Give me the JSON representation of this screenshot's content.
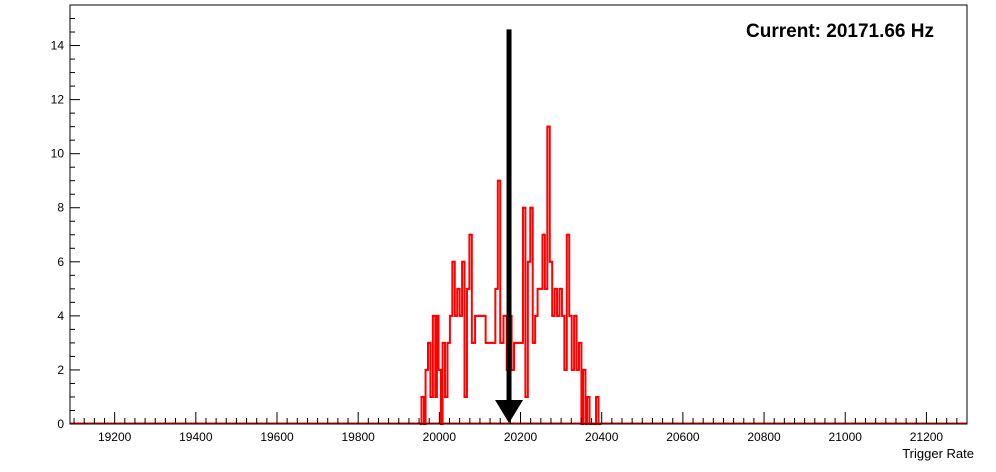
{
  "chart_data": {
    "type": "histogram",
    "title": "",
    "xlabel": "Trigger Rate",
    "ylabel": "",
    "xlim": [
      19090,
      21300
    ],
    "ylim": [
      0,
      15.5
    ],
    "x_ticks": [
      19200,
      19400,
      19600,
      19800,
      20000,
      20200,
      20400,
      20600,
      20800,
      21000,
      21200
    ],
    "y_ticks": [
      0,
      2,
      4,
      6,
      8,
      10,
      12,
      14
    ],
    "grid": false,
    "legend": "none",
    "series_color": "#ff0000",
    "annotation": "Current: 20171.66 Hz",
    "marker_color": "#000000",
    "current_value": 20171.66,
    "bins": [
      {
        "x": 19952,
        "y": 0
      },
      {
        "x": 19956,
        "y": 1
      },
      {
        "x": 19962,
        "y": 0
      },
      {
        "x": 19966,
        "y": 2
      },
      {
        "x": 19972,
        "y": 3
      },
      {
        "x": 19978,
        "y": 1
      },
      {
        "x": 19984,
        "y": 4
      },
      {
        "x": 19990,
        "y": 1
      },
      {
        "x": 19994,
        "y": 4
      },
      {
        "x": 19998,
        "y": 2
      },
      {
        "x": 20004,
        "y": 0
      },
      {
        "x": 20008,
        "y": 3
      },
      {
        "x": 20014,
        "y": 1
      },
      {
        "x": 20020,
        "y": 3
      },
      {
        "x": 20026,
        "y": 4
      },
      {
        "x": 20032,
        "y": 6
      },
      {
        "x": 20038,
        "y": 4
      },
      {
        "x": 20044,
        "y": 5
      },
      {
        "x": 20050,
        "y": 4
      },
      {
        "x": 20056,
        "y": 6
      },
      {
        "x": 20062,
        "y": 1
      },
      {
        "x": 20068,
        "y": 5
      },
      {
        "x": 20074,
        "y": 7
      },
      {
        "x": 20080,
        "y": 3
      },
      {
        "x": 20088,
        "y": 4
      },
      {
        "x": 20098,
        "y": 4
      },
      {
        "x": 20106,
        "y": 4
      },
      {
        "x": 20114,
        "y": 3
      },
      {
        "x": 20122,
        "y": 3
      },
      {
        "x": 20130,
        "y": 3
      },
      {
        "x": 20138,
        "y": 5
      },
      {
        "x": 20144,
        "y": 9
      },
      {
        "x": 20150,
        "y": 3
      },
      {
        "x": 20158,
        "y": 4
      },
      {
        "x": 20166,
        "y": 2
      },
      {
        "x": 20172,
        "y": 4
      },
      {
        "x": 20178,
        "y": 2
      },
      {
        "x": 20184,
        "y": 3
      },
      {
        "x": 20192,
        "y": 3
      },
      {
        "x": 20200,
        "y": 3
      },
      {
        "x": 20206,
        "y": 8
      },
      {
        "x": 20212,
        "y": 1
      },
      {
        "x": 20218,
        "y": 6
      },
      {
        "x": 20224,
        "y": 8
      },
      {
        "x": 20230,
        "y": 3
      },
      {
        "x": 20236,
        "y": 4
      },
      {
        "x": 20242,
        "y": 5
      },
      {
        "x": 20248,
        "y": 5
      },
      {
        "x": 20254,
        "y": 7
      },
      {
        "x": 20260,
        "y": 5
      },
      {
        "x": 20266,
        "y": 11
      },
      {
        "x": 20272,
        "y": 6
      },
      {
        "x": 20278,
        "y": 4
      },
      {
        "x": 20284,
        "y": 5
      },
      {
        "x": 20290,
        "y": 4
      },
      {
        "x": 20296,
        "y": 5
      },
      {
        "x": 20302,
        "y": 4
      },
      {
        "x": 20308,
        "y": 2
      },
      {
        "x": 20314,
        "y": 7
      },
      {
        "x": 20320,
        "y": 4
      },
      {
        "x": 20326,
        "y": 2
      },
      {
        "x": 20332,
        "y": 4
      },
      {
        "x": 20338,
        "y": 2
      },
      {
        "x": 20344,
        "y": 3
      },
      {
        "x": 20350,
        "y": 0
      },
      {
        "x": 20354,
        "y": 2
      },
      {
        "x": 20360,
        "y": 0
      },
      {
        "x": 20364,
        "y": 1
      },
      {
        "x": 20370,
        "y": 0
      },
      {
        "x": 20380,
        "y": 0
      },
      {
        "x": 20386,
        "y": 1
      },
      {
        "x": 20392,
        "y": 0
      }
    ]
  }
}
